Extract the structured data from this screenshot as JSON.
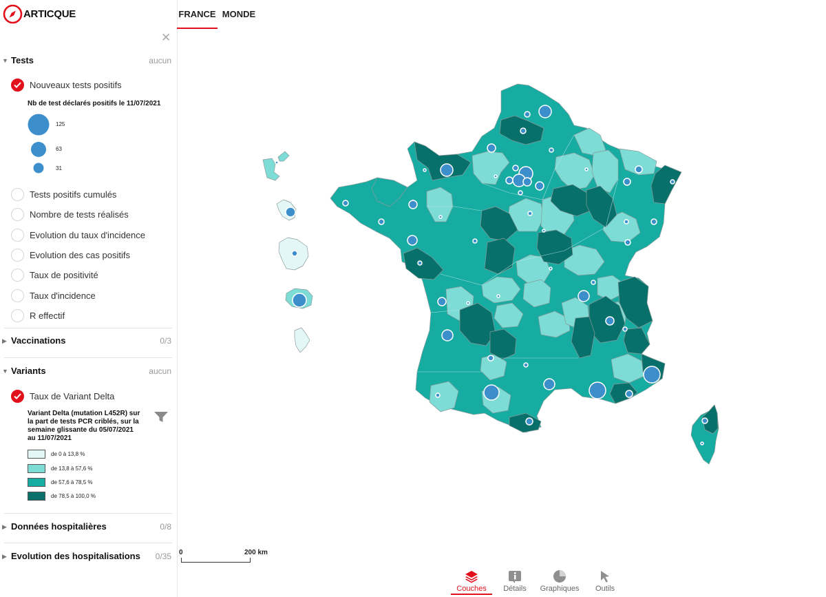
{
  "app": {
    "logo_text": "ARTICQUE"
  },
  "tabs": [
    {
      "label": "FRANCE",
      "active": true
    },
    {
      "label": "MONDE",
      "active": false
    }
  ],
  "sidebar": {
    "close_icon": "close-icon",
    "tests": {
      "title": "Tests",
      "count": "aucun",
      "selected_option": "Nouveaux tests positifs",
      "options": [
        "Nouveaux tests positifs",
        "Tests positifs cumulés",
        "Nombre de tests réalisés",
        "Evolution du taux d'incidence",
        "Evolution des cas positifs",
        "Taux de positivité",
        "Taux d'incidence",
        "R effectif"
      ],
      "legend": {
        "title": "Nb de test déclarés positifs le 11/07/2021",
        "bubble_values": [
          "125",
          "63",
          "31"
        ],
        "bubble_color": "#3d8fcc"
      }
    },
    "vaccinations": {
      "title": "Vaccinations",
      "count": "0/3",
      "expanded": false
    },
    "variants": {
      "title": "Variants",
      "count": "aucun",
      "option": "Taux de Variant Delta",
      "filter_icon": "funnel-icon",
      "legend": {
        "title_lines": [
          "Variant Delta (mutation L452R) sur",
          "la part de tests PCR criblés, sur la",
          "semaine glissante du 05/07/2021",
          "au 11/07/2021"
        ],
        "classes": [
          {
            "label": "de 0 à 13,8 %",
            "color": "#e3f7f6"
          },
          {
            "label": "de 13,8 à 57,6 %",
            "color": "#7edcd7"
          },
          {
            "label": "de 57,6 à 78,5 %",
            "color": "#17aca2"
          },
          {
            "label": "de 78,5 à 100,0 %",
            "color": "#07706a"
          }
        ]
      }
    },
    "hospital_data": {
      "title": "Données hospitalières",
      "count": "0/8",
      "expanded": false
    },
    "hospital_trend": {
      "title": "Evolution des hospitalisations",
      "count": "0/35",
      "expanded": false
    }
  },
  "map": {
    "scale": {
      "start": "0",
      "end": "200 km"
    }
  },
  "toolbar": [
    {
      "label": "Couches",
      "icon": "layers-icon",
      "active": true
    },
    {
      "label": "Détails",
      "icon": "info-icon",
      "active": false
    },
    {
      "label": "Graphiques",
      "icon": "pie-chart-icon",
      "active": false
    },
    {
      "label": "Outils",
      "icon": "cursor-icon",
      "active": false
    }
  ],
  "colors": {
    "accent": "#e2101b",
    "bubble": "#3d8fcc"
  }
}
